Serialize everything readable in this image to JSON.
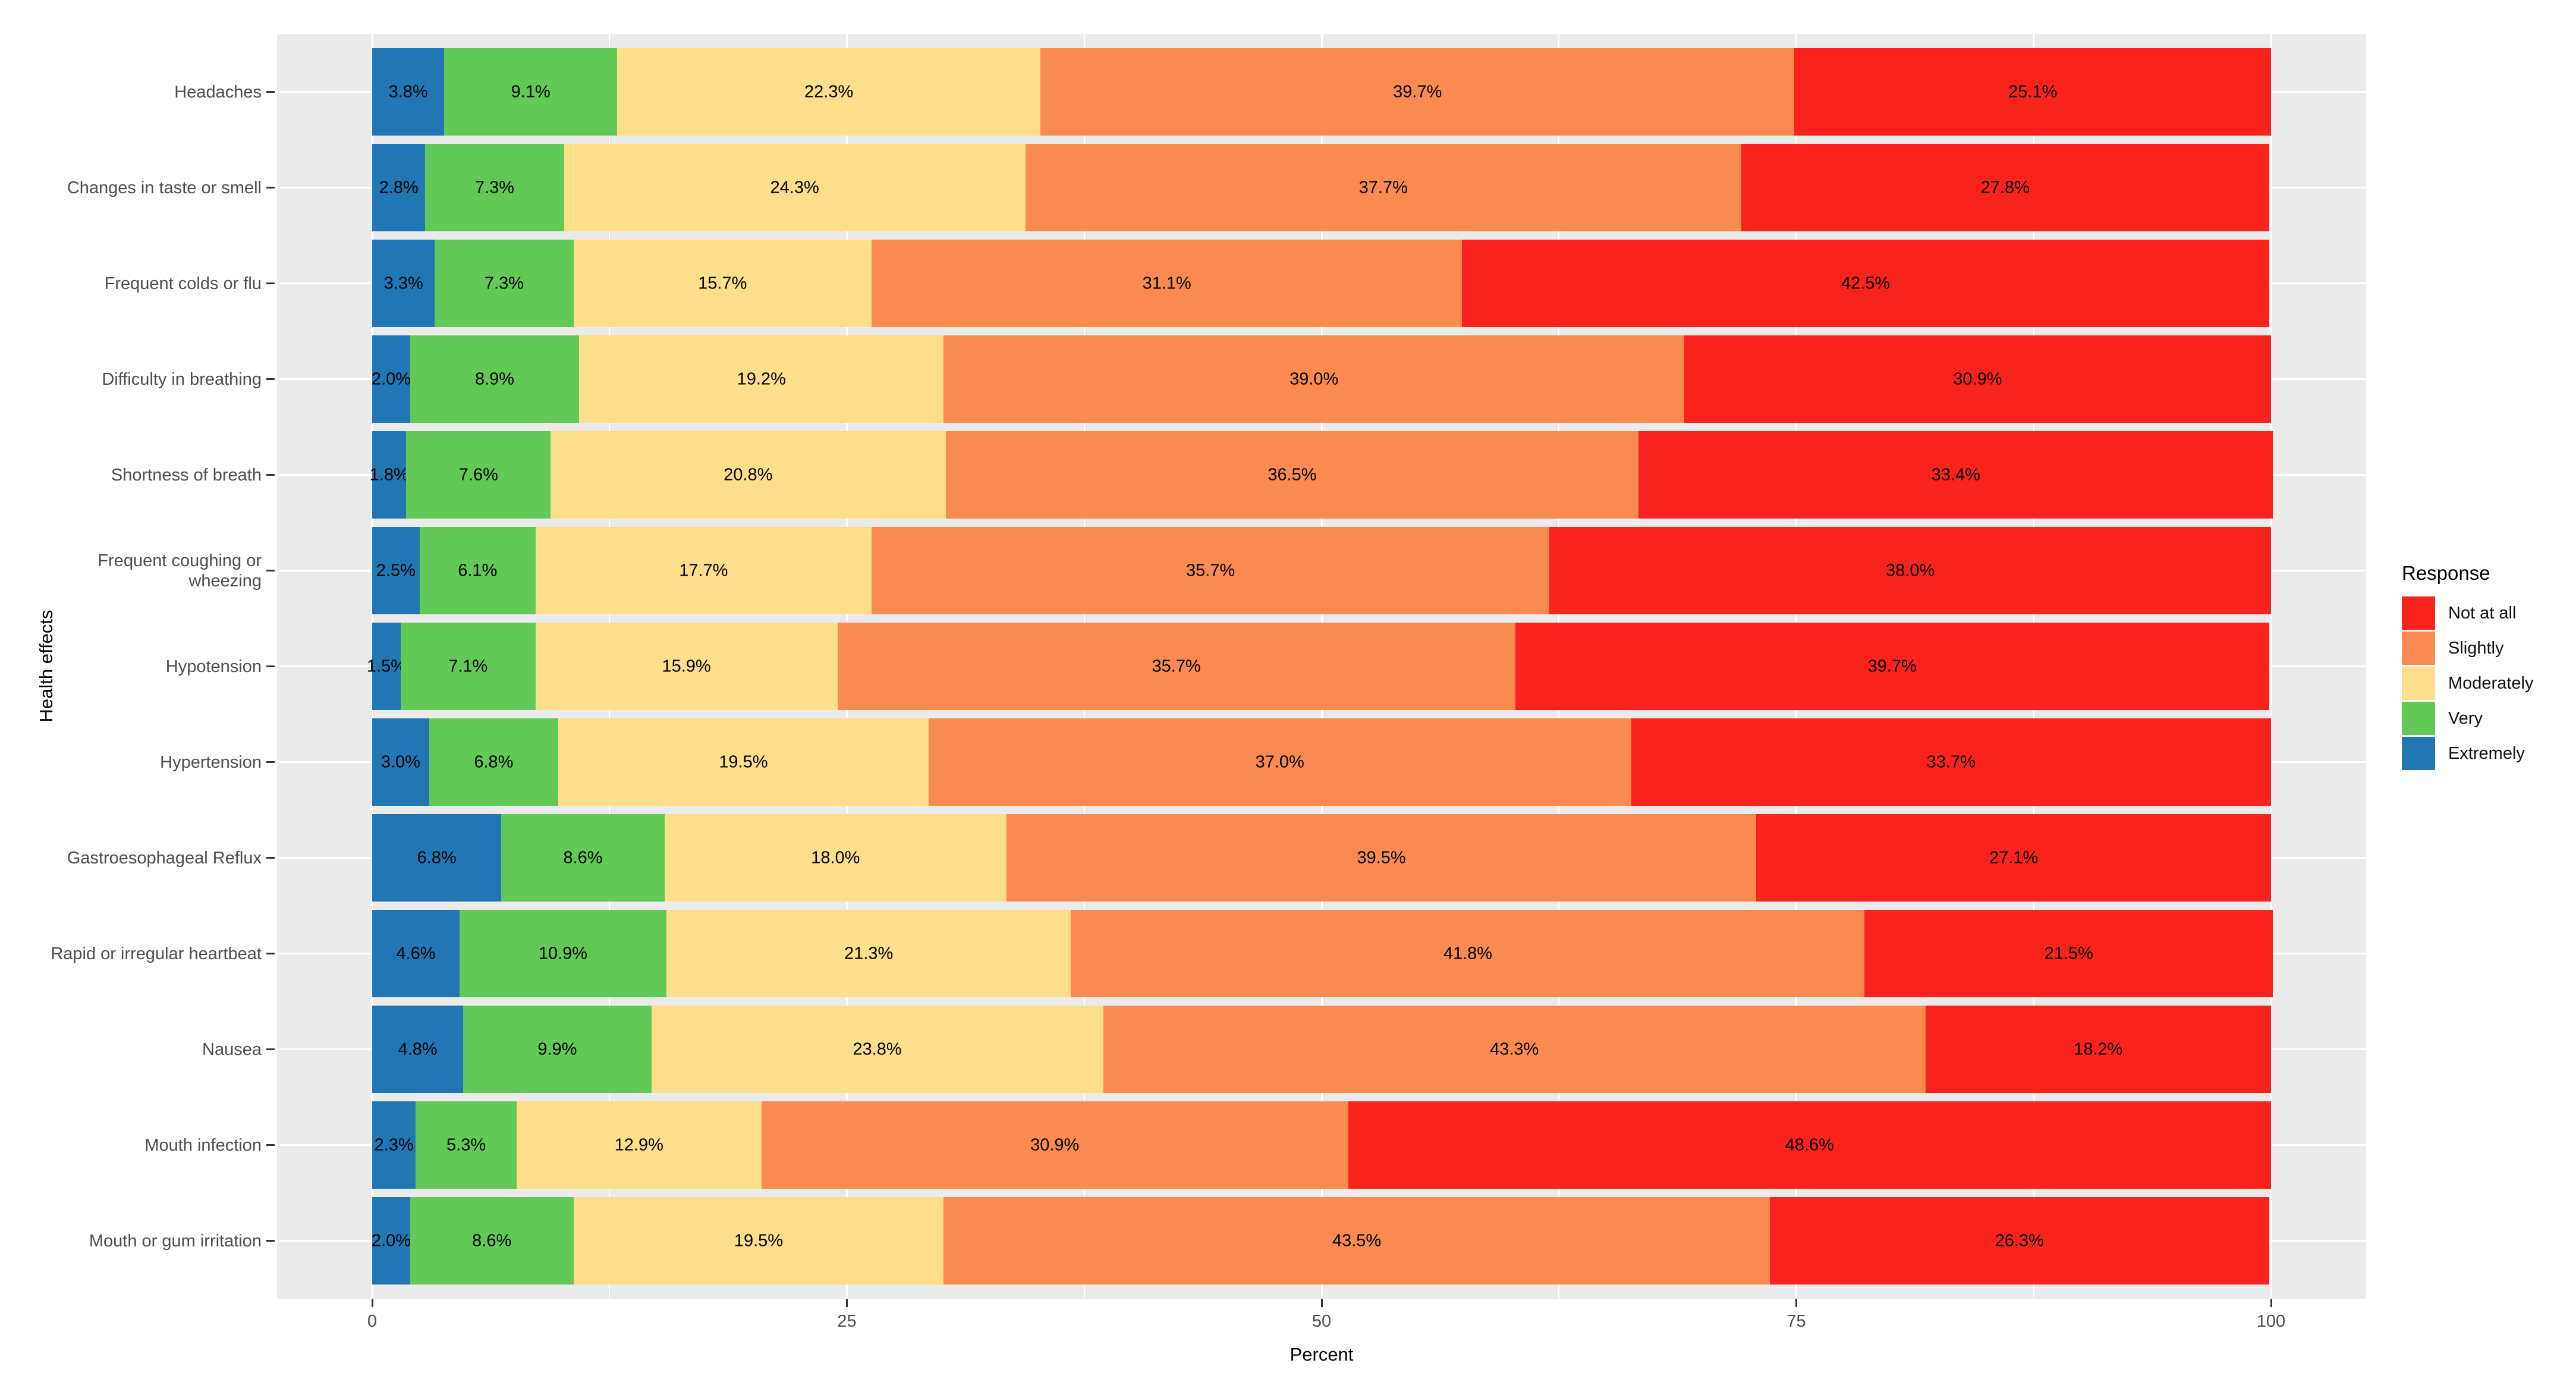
{
  "figure": {
    "x_axis_title": "Percent",
    "y_axis_title": "Health effects",
    "legend_title": "Response"
  },
  "colors": {
    "panel_background": "#EBEBEB",
    "gridline": "#FFFFFF",
    "axis_text": "#4D4D4D",
    "axis_title": "#000000",
    "bar_label": "#000000",
    "tick_mark": "#333333",
    "not_at_all": "#F8231D",
    "slightly": "#FA8B50",
    "moderately": "#FCDE8B",
    "very": "#62C957",
    "extremely": "#2077B4"
  },
  "chart_data": {
    "type": "bar",
    "orientation": "horizontal_stacked",
    "title": "",
    "xlabel": "Percent",
    "ylabel": "Health effects",
    "xlim": [
      0,
      100
    ],
    "x_ticks": [
      0,
      25,
      50,
      75,
      100
    ],
    "x_minor_gridlines": [
      12.5,
      37.5,
      62.5,
      87.5
    ],
    "grid": "white major+minor vertical lines and major horizontal lines on gray panel",
    "legend_title": "Response",
    "legend_position": "right",
    "legend_items": [
      {
        "label": "Not at all",
        "color": "#F8231D"
      },
      {
        "label": "Slightly",
        "color": "#FA8B50"
      },
      {
        "label": "Moderately",
        "color": "#FCDE8B"
      },
      {
        "label": "Very",
        "color": "#62C957"
      },
      {
        "label": "Extremely",
        "color": "#2077B4"
      }
    ],
    "categories": [
      "Headaches",
      "Changes in taste or smell",
      "Frequent colds or flu",
      "Difficulty in breathing",
      "Shortness of breath",
      "Frequent coughing or wheezing",
      "Hypotension",
      "Hypertension",
      "Gastroesophageal Reflux",
      "Rapid or irregular heartbeat",
      "Nausea",
      "Mouth infection",
      "Mouth or gum irritation"
    ],
    "stack_order_left_to_right": [
      "Extremely",
      "Very",
      "Moderately",
      "Slightly",
      "Not at all"
    ],
    "series": [
      {
        "name": "Extremely",
        "color": "#2077B4",
        "values": [
          3.8,
          2.8,
          3.3,
          2.0,
          1.8,
          2.5,
          1.5,
          3.0,
          6.8,
          4.6,
          4.8,
          2.3,
          2.0
        ]
      },
      {
        "name": "Very",
        "color": "#62C957",
        "values": [
          9.1,
          7.3,
          7.3,
          8.9,
          7.6,
          6.1,
          7.1,
          6.8,
          8.6,
          10.9,
          9.9,
          5.3,
          8.6
        ]
      },
      {
        "name": "Moderately",
        "color": "#FCDE8B",
        "values": [
          22.3,
          24.3,
          15.7,
          19.2,
          20.8,
          17.7,
          15.9,
          19.5,
          18.0,
          21.3,
          23.8,
          12.9,
          19.5
        ]
      },
      {
        "name": "Slightly",
        "color": "#FA8B50",
        "values": [
          39.7,
          37.7,
          31.1,
          39.0,
          36.5,
          35.7,
          35.7,
          37.0,
          39.5,
          41.8,
          43.3,
          30.9,
          43.5
        ]
      },
      {
        "name": "Not at all",
        "color": "#F8231D",
        "values": [
          25.1,
          27.8,
          42.5,
          30.9,
          33.4,
          38.0,
          39.7,
          33.7,
          27.1,
          21.5,
          18.2,
          48.6,
          26.3
        ]
      }
    ],
    "value_label_suffix": "%",
    "value_label_decimals": 1
  }
}
